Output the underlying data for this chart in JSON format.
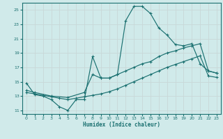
{
  "xlabel": "Humidex (Indice chaleur)",
  "bg_color": "#d0eaea",
  "grid_color": "#c8d8d8",
  "line_color": "#1a7070",
  "xlim": [
    -0.5,
    23.5
  ],
  "ylim": [
    10.5,
    26.0
  ],
  "xtick_labels": [
    "0",
    "1",
    "2",
    "3",
    "4",
    "5",
    "6",
    "7",
    "8",
    "9",
    "10",
    "11",
    "12",
    "13",
    "14",
    "15",
    "16",
    "17",
    "18",
    "19",
    "20",
    "21",
    "22",
    "23"
  ],
  "xticks": [
    0,
    1,
    2,
    3,
    4,
    5,
    6,
    7,
    8,
    9,
    10,
    11,
    12,
    13,
    14,
    15,
    16,
    17,
    18,
    19,
    20,
    21,
    22,
    23
  ],
  "yticks": [
    11,
    13,
    15,
    17,
    19,
    21,
    23,
    25
  ],
  "line1_x": [
    0,
    1,
    2,
    3,
    4,
    5,
    6,
    7,
    8,
    9,
    10,
    11,
    12,
    13,
    14,
    15,
    16,
    17,
    18,
    19,
    20,
    21,
    22,
    23
  ],
  "line1_y": [
    14.8,
    13.2,
    13.0,
    12.5,
    11.5,
    11.0,
    12.5,
    12.5,
    18.5,
    15.5,
    15.5,
    16.0,
    23.5,
    25.5,
    25.5,
    24.5,
    22.5,
    21.5,
    20.2,
    20.0,
    20.3,
    17.5,
    16.5,
    16.2
  ],
  "line2_x": [
    0,
    1,
    3,
    5,
    7,
    8,
    9,
    10,
    11,
    12,
    13,
    14,
    15,
    16,
    17,
    18,
    19,
    20,
    21,
    22,
    23
  ],
  "line2_y": [
    13.8,
    13.5,
    13.0,
    12.8,
    13.5,
    16.0,
    15.5,
    15.5,
    16.0,
    16.5,
    17.0,
    17.5,
    17.8,
    18.5,
    19.0,
    19.3,
    19.7,
    20.0,
    20.3,
    16.5,
    16.2
  ],
  "line3_x": [
    0,
    1,
    2,
    3,
    4,
    5,
    6,
    7,
    8,
    9,
    10,
    11,
    12,
    13,
    14,
    15,
    16,
    17,
    18,
    19,
    20,
    21,
    22,
    23
  ],
  "line3_y": [
    13.5,
    13.3,
    13.1,
    12.9,
    12.7,
    12.5,
    12.7,
    12.9,
    13.1,
    13.3,
    13.6,
    14.0,
    14.5,
    15.0,
    15.5,
    16.0,
    16.5,
    17.0,
    17.4,
    17.8,
    18.2,
    18.6,
    15.8,
    15.6
  ]
}
